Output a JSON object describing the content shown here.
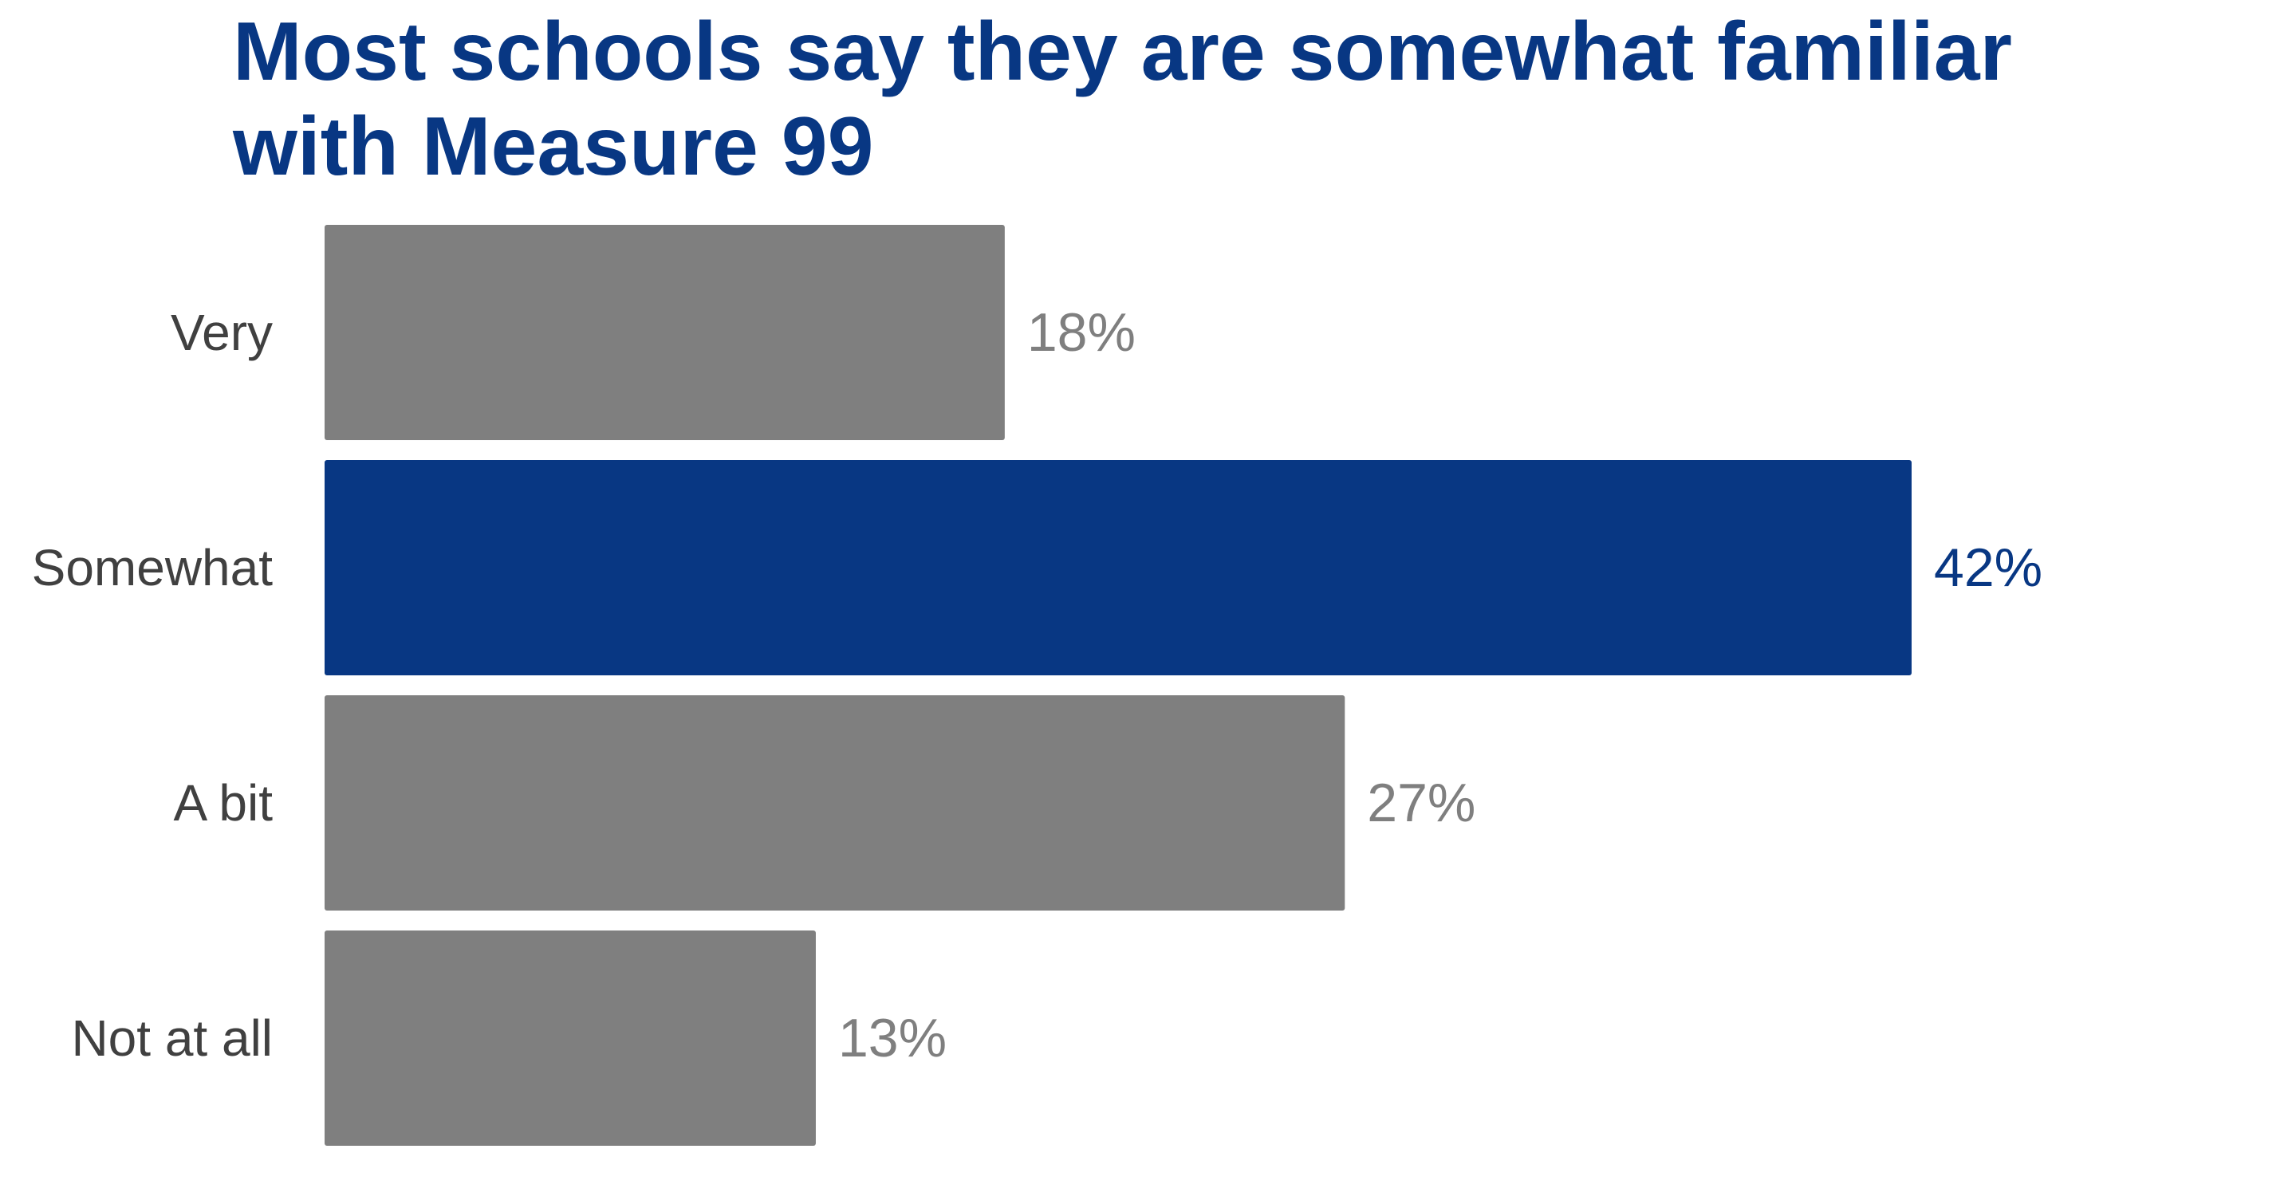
{
  "chart_data": {
    "type": "bar",
    "orientation": "horizontal",
    "title": "Most schools say they are somewhat familiar with Measure 99",
    "categories": [
      "Very",
      "Somewhat",
      "A bit",
      "Not at all"
    ],
    "values": [
      18,
      42,
      27,
      13
    ],
    "value_labels": [
      "18%",
      "42%",
      "27%",
      "13%"
    ],
    "highlight_index": 1,
    "xlim": [
      0,
      42
    ],
    "grid": false,
    "legend": "none"
  },
  "colors": {
    "title": "#083783",
    "highlight_bar": "#083783",
    "default_bar": "#7f7f7f",
    "category_text": "#404040",
    "highlight_value_text": "#083783",
    "default_value_text": "#7f7f7f"
  }
}
